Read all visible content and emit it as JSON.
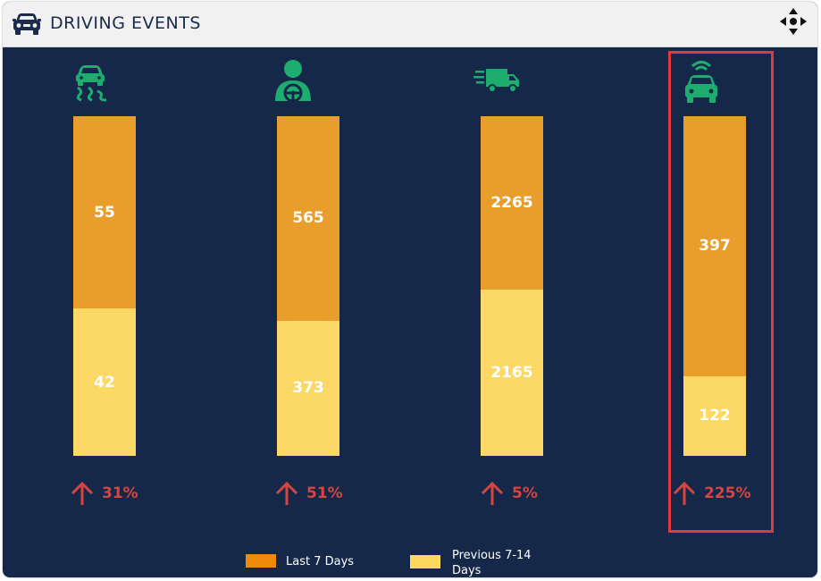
{
  "header": {
    "title": "DRIVING EVENTS"
  },
  "legend": {
    "items": [
      {
        "label": "Last 7 Days",
        "color": "#f08a0a"
      },
      {
        "label_line1": "Previous 7-14",
        "label_line2": "Days",
        "color": "#fcd860"
      }
    ]
  },
  "columns": [
    {
      "icon": "skidding-car-icon",
      "last": "55",
      "previous": "42",
      "change": "31%",
      "trend": "up"
    },
    {
      "icon": "driver-icon",
      "last": "565",
      "previous": "373",
      "change": "51%",
      "trend": "up"
    },
    {
      "icon": "speeding-truck-icon",
      "last": "2265",
      "previous": "2165",
      "change": "5%",
      "trend": "up"
    },
    {
      "icon": "connected-car-icon",
      "last": "397",
      "previous": "122",
      "change": "225%",
      "trend": "up"
    }
  ],
  "colors": {
    "background": "#152849",
    "last_7_days": "#e99d2a",
    "previous_7_14_days": "#fcd966",
    "icon_green": "#1dae6f",
    "trend_red": "#d64540",
    "highlight": "#e03b3b"
  },
  "chart_data": {
    "type": "bar",
    "stacked": true,
    "categories": [
      "",
      "",
      "",
      ""
    ],
    "series": [
      {
        "name": "Last 7 Days",
        "values": [
          55,
          565,
          2265,
          397
        ]
      },
      {
        "name": "Previous 7-14 Days",
        "values": [
          42,
          373,
          2165,
          122
        ]
      }
    ],
    "change_labels": [
      "31%",
      "51%",
      "5%",
      "225%"
    ],
    "normalized_to_100_percent": true,
    "legend_position": "bottom",
    "grid": false
  }
}
